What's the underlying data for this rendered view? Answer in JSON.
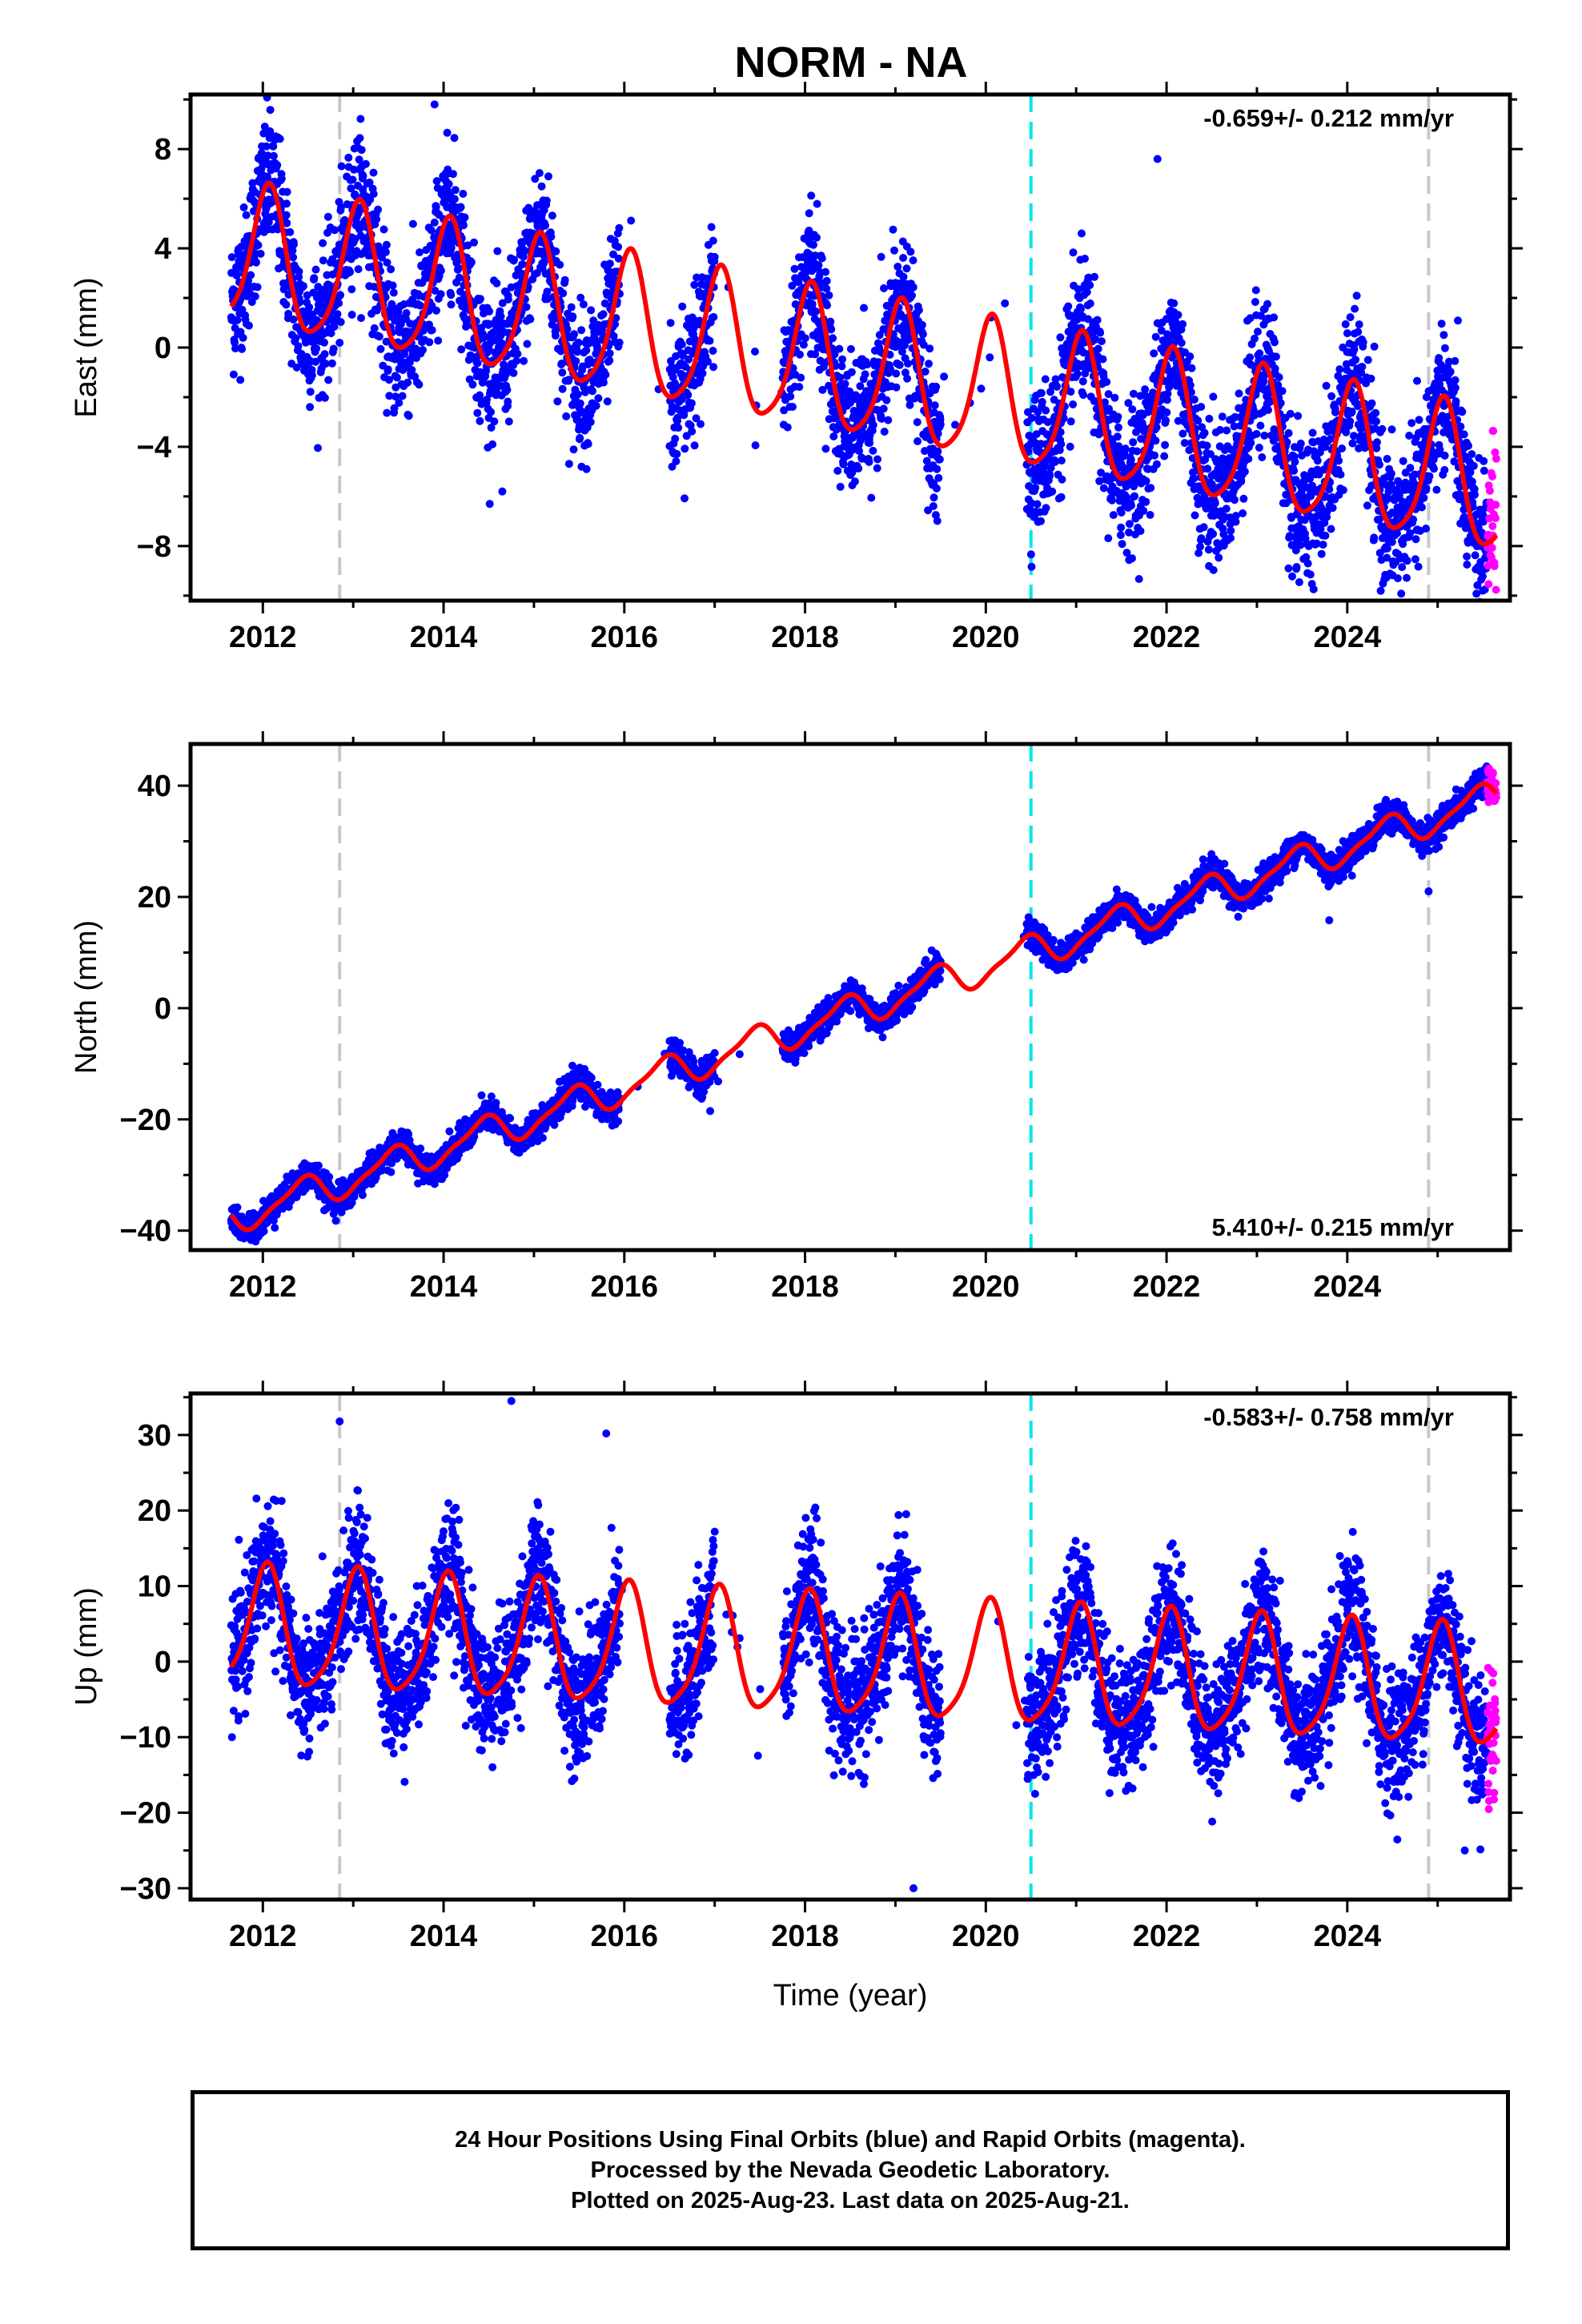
{
  "title": "NORM - NA",
  "caption": {
    "line1": "24 Hour Positions Using Final Orbits (blue) and Rapid Orbits (magenta).",
    "line2": "Processed by the Nevada Geodetic Laboratory.",
    "line3": "Plotted on 2025-Aug-23. Last data on 2025-Aug-21."
  },
  "colors": {
    "final_orbits": "#0000ff",
    "rapid_orbits": "#ff00ff",
    "model_fit": "#ff0000",
    "antenna_change_line": "#00e5ee",
    "equipment_change_line": "#c8c8c8"
  },
  "chart_data": [
    {
      "type": "scatter",
      "panel": "east",
      "ylabel": "East (mm)",
      "xlabel": "",
      "xlim": [
        2011.2,
        2025.8
      ],
      "ylim": [
        -10.2,
        10.2
      ],
      "xticks": [
        2012,
        2014,
        2016,
        2018,
        2020,
        2022,
        2024
      ],
      "yticks": [
        -8,
        -4,
        0,
        4,
        8
      ],
      "rate": "-0.659+/- 0.212 mm/yr",
      "rate_position": "top-right",
      "vertical_lines": [
        {
          "x": 2012.85,
          "style": "dashed",
          "color": "gray"
        },
        {
          "x": 2020.5,
          "style": "dashed",
          "color": "cyan"
        },
        {
          "x": 2024.9,
          "style": "dashed",
          "color": "gray"
        }
      ],
      "model": {
        "offset": 3.6,
        "rate": -0.659,
        "ref_year": 2011.7,
        "amp1": 2.8,
        "phase1": 1.2,
        "amp2": 0.5,
        "phase2": 0.4
      },
      "final_orbits_range": [
        2011.65,
        2025.55
      ],
      "rapid_orbits_range": [
        2025.55,
        2025.65
      ],
      "data_gaps": [
        [
          2015.95,
          2016.5
        ],
        [
          2017.0,
          2017.75
        ],
        [
          2019.5,
          2020.45
        ]
      ],
      "scatter_std": 1.4,
      "outliers": [
        [
          2021.9,
          7.6
        ],
        [
          2013.9,
          9.8
        ],
        [
          2014.65,
          -5.8
        ],
        [
          2023.35,
          -8.9
        ],
        [
          2025.5,
          -9.8
        ]
      ]
    },
    {
      "type": "scatter",
      "panel": "north",
      "ylabel": "North (mm)",
      "xlabel": "",
      "xlim": [
        2011.2,
        2025.8
      ],
      "ylim": [
        -43.5,
        47.5
      ],
      "xticks": [
        2012,
        2014,
        2016,
        2018,
        2020,
        2022,
        2024
      ],
      "yticks": [
        -40,
        -20,
        0,
        20,
        40
      ],
      "rate": "5.410+/- 0.215 mm/yr",
      "rate_position": "bottom-right",
      "vertical_lines": [
        {
          "x": 2012.85,
          "style": "dashed",
          "color": "gray"
        },
        {
          "x": 2020.5,
          "style": "dashed",
          "color": "cyan"
        },
        {
          "x": 2024.9,
          "style": "dashed",
          "color": "gray"
        }
      ],
      "model": {
        "offset": -37.5,
        "rate": 5.41,
        "ref_year": 2011.7,
        "amp1": 2.8,
        "phase1": 5.2,
        "amp2": 0.8,
        "phase2": 1.0
      },
      "final_orbits_range": [
        2011.65,
        2025.55
      ],
      "rapid_orbits_range": [
        2025.55,
        2025.65
      ],
      "data_gaps": [
        [
          2015.95,
          2016.5
        ],
        [
          2017.0,
          2017.75
        ],
        [
          2019.5,
          2020.45
        ]
      ],
      "scatter_std": 1.3,
      "outliers": [
        [
          2023.8,
          15.8
        ],
        [
          2024.9,
          21.0
        ],
        [
          2016.95,
          -18.5
        ]
      ]
    },
    {
      "type": "scatter",
      "panel": "up",
      "ylabel": "Up (mm)",
      "xlabel": "Time (year)",
      "xlim": [
        2011.2,
        2025.8
      ],
      "ylim": [
        -31.5,
        35.5
      ],
      "xticks": [
        2012,
        2014,
        2016,
        2018,
        2020,
        2022,
        2024
      ],
      "yticks": [
        -30,
        -20,
        -10,
        0,
        10,
        20,
        30
      ],
      "rate": "-0.583+/- 0.758 mm/yr",
      "rate_position": "top-right",
      "vertical_lines": [
        {
          "x": 2012.85,
          "style": "dashed",
          "color": "gray"
        },
        {
          "x": 2020.5,
          "style": "dashed",
          "color": "cyan"
        },
        {
          "x": 2024.9,
          "style": "dashed",
          "color": "gray"
        }
      ],
      "model": {
        "offset": 4.2,
        "rate": -0.583,
        "ref_year": 2011.7,
        "amp1": 7.8,
        "phase1": 1.35,
        "amp2": 1.5,
        "phase2": 0.6
      },
      "final_orbits_range": [
        2011.65,
        2025.55
      ],
      "rapid_orbits_range": [
        2025.55,
        2025.65
      ],
      "data_gaps": [
        [
          2015.95,
          2016.5
        ],
        [
          2017.0,
          2017.75
        ],
        [
          2019.5,
          2020.45
        ]
      ],
      "scatter_std": 4.2,
      "outliers": [
        [
          2014.75,
          34.5
        ],
        [
          2019.2,
          -30.0
        ],
        [
          2012.85,
          31.8
        ],
        [
          2015.8,
          30.2
        ],
        [
          2025.3,
          -25.0
        ]
      ]
    }
  ]
}
